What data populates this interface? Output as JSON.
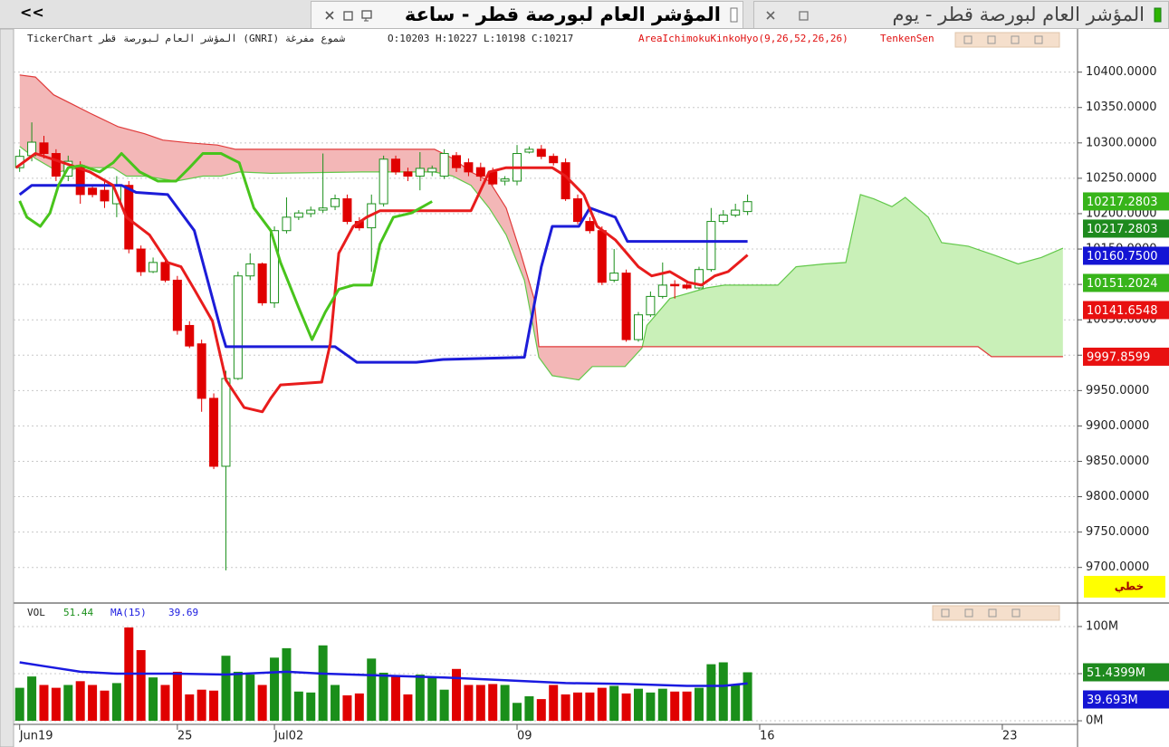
{
  "tabs": {
    "back": "<<",
    "items": [
      {
        "title": "المؤشر العام لبورصة قطر - ساعة"
      },
      {
        "title": "المؤشر العام لبورصة قطر - يوم"
      }
    ]
  },
  "chart_data": [
    {
      "type": "candlestick",
      "title": "TickerChart المؤشر العام لبورصة قطر (GNRI) شموع مفرغة",
      "ohlc": "O:10203 H:10227 L:10198 C:10217",
      "indicators": [
        "AreaIchimokuKinkoHyo(9,26,52,26,26)",
        "TenkenSen"
      ],
      "chart_style": "خطي",
      "up_color": "#1a8f1a",
      "down_color": "#e00000",
      "grid": true,
      "xlim": [
        -0.5,
        87.2
      ],
      "ylim": [
        9651,
        10461
      ],
      "xticks": [
        {
          "value": 0,
          "label": "Jun19"
        },
        {
          "value": 13,
          "label": "25"
        },
        {
          "value": 21,
          "label": "Jul02"
        },
        {
          "value": 41,
          "label": "09"
        },
        {
          "value": 61,
          "label": "16"
        },
        {
          "value": 81,
          "label": "23"
        }
      ],
      "yticks": [
        {
          "value": 9700,
          "label": "9700.0000"
        },
        {
          "value": 9750,
          "label": "9750.0000"
        },
        {
          "value": 9800,
          "label": "9800.0000"
        },
        {
          "value": 9850,
          "label": "9850.0000"
        },
        {
          "value": 9900,
          "label": "9900.0000"
        },
        {
          "value": 9950,
          "label": "9950.0000"
        },
        {
          "value": 10000,
          "label": "10000.0000"
        },
        {
          "value": 10050,
          "label": "10050.0000"
        },
        {
          "value": 10100,
          "label": "10100.0000"
        },
        {
          "value": 10150,
          "label": "10150.0000"
        },
        {
          "value": 10200,
          "label": "10200.0000"
        },
        {
          "value": 10250,
          "label": "10250.0000"
        },
        {
          "value": 10300,
          "label": "10300.0000"
        },
        {
          "value": 10350,
          "label": "10350.0000"
        },
        {
          "value": 10400,
          "label": "10400.0000"
        }
      ],
      "x": [
        0,
        1,
        2,
        3,
        4,
        5,
        6,
        7,
        8,
        9,
        10,
        11,
        12,
        13,
        14,
        15,
        16,
        17,
        18,
        19,
        20,
        21,
        22,
        23,
        24,
        25,
        26,
        27,
        28,
        29,
        30,
        31,
        32,
        33,
        34,
        35,
        36,
        37,
        38,
        39,
        40,
        41,
        42,
        43,
        44,
        45,
        46,
        47,
        48,
        49,
        50,
        51,
        52,
        53,
        54,
        55,
        56,
        57,
        58,
        59,
        60
      ],
      "open": [
        10265,
        10282,
        10300,
        10285,
        10253,
        10268,
        10236,
        10233,
        10214,
        10240,
        10150,
        10118,
        10131,
        10106,
        10042,
        10016,
        9939,
        9843,
        9967,
        10112,
        10129,
        10074,
        10176,
        10195,
        10200,
        10205,
        10210,
        10221,
        10189,
        10180,
        10214,
        10277,
        10259,
        10253,
        10259,
        10253,
        10282,
        10272,
        10265,
        10259,
        10246,
        10246,
        10287,
        10291,
        10281,
        10272,
        10221,
        10189,
        10176,
        10106,
        10116,
        10022,
        10057,
        10083,
        10100,
        10099,
        10095,
        10121,
        10189,
        10198,
        10203
      ],
      "high": [
        10291,
        10329,
        10310,
        10291,
        10282,
        10274,
        10240,
        10246,
        10253,
        10246,
        10155,
        10138,
        10138,
        10112,
        10048,
        10022,
        9946,
        9978,
        10118,
        10144,
        10131,
        10182,
        10223,
        10205,
        10210,
        10285,
        10227,
        10227,
        10195,
        10227,
        10282,
        10282,
        10265,
        10287,
        10268,
        10291,
        10287,
        10278,
        10272,
        10265,
        10253,
        10297,
        10295,
        10297,
        10285,
        10278,
        10227,
        10195,
        10182,
        10150,
        10121,
        10061,
        10090,
        10131,
        10106,
        10103,
        10125,
        10208,
        10205,
        10214,
        10227
      ],
      "low": [
        10259,
        10274,
        10278,
        10246,
        10246,
        10214,
        10223,
        10208,
        10195,
        10144,
        10112,
        10116,
        10103,
        10029,
        10010,
        9920,
        9839,
        9696,
        9965,
        10106,
        10070,
        10067,
        10172,
        10191,
        10195,
        10201,
        10205,
        10185,
        10176,
        10118,
        10210,
        10255,
        10246,
        10233,
        10253,
        10249,
        10259,
        10253,
        10246,
        10240,
        10240,
        10240,
        10285,
        10277,
        10268,
        10218,
        10185,
        10172,
        10099,
        10103,
        10019,
        10019,
        10054,
        10080,
        10080,
        10093,
        10093,
        10118,
        10185,
        10195,
        10198
      ],
      "close": [
        10281,
        10301,
        10285,
        10253,
        10274,
        10227,
        10227,
        10218,
        10240,
        10150,
        10118,
        10131,
        10106,
        10035,
        10013,
        9939,
        9843,
        9967,
        10112,
        10129,
        10074,
        10176,
        10195,
        10201,
        10205,
        10208,
        10221,
        10189,
        10180,
        10214,
        10277,
        10259,
        10253,
        10264,
        10264,
        10285,
        10265,
        10259,
        10253,
        10242,
        10249,
        10285,
        10291,
        10281,
        10272,
        10221,
        10189,
        10176,
        10103,
        10116,
        10022,
        10057,
        10083,
        10099,
        10098,
        10095,
        10121,
        10189,
        10198,
        10205,
        10217
      ],
      "cloud": {
        "up_fill": "#c9f0b8",
        "down_fill": "#f3b7b7",
        "span_a": {
          "color": "#62c84a",
          "x": [
            0,
            1.3,
            3.2,
            5.1,
            7.7,
            8.8,
            10.3,
            12.9,
            15.1,
            16.6,
            18.1,
            20.7,
            28.2,
            34.2,
            35.7,
            37.2,
            38.7,
            40.1,
            41.6,
            42.8,
            43.9,
            46.1,
            47.2,
            49.9,
            51.3,
            51.7,
            53.6,
            56.6,
            58.1,
            62.5,
            64,
            66.3,
            68.1,
            69.3,
            70.4,
            71.9,
            73,
            74.9,
            76,
            78.2,
            80.4,
            82.3,
            84.2,
            86
          ],
          "values": [
            10295,
            10278,
            10259,
            10265,
            10265,
            10253,
            10253,
            10246,
            10253,
            10253,
            10259,
            10257,
            10259,
            10259,
            10253,
            10240,
            10208,
            10170,
            10106,
            9997,
            9971,
            9965,
            9984,
            9984,
            10010,
            10042,
            10080,
            10095,
            10099,
            10099,
            10125,
            10129,
            10131,
            10227,
            10221,
            10210,
            10223,
            10195,
            10159,
            10154,
            10141,
            10129,
            10138,
            10151.2024
          ]
        },
        "span_b": {
          "color": "#e03a3a",
          "x": [
            0,
            1.3,
            2.8,
            4.3,
            5.8,
            8.1,
            10.3,
            11.8,
            14,
            16.3,
            17.8,
            34.2,
            34.9,
            35.7,
            37.2,
            38.7,
            40.1,
            41.3,
            42.4,
            42.8,
            50.6,
            79,
            80.1,
            86
          ],
          "values": [
            10396,
            10393,
            10368,
            10355,
            10342,
            10323,
            10313,
            10304,
            10300,
            10297,
            10291,
            10291,
            10285,
            10278,
            10259,
            10246,
            10208,
            10144,
            10080,
            10012,
            10012,
            10012,
            9997.8599,
            9997.8599
          ]
        }
      },
      "lines": [
        {
          "color": "#1c1cd8",
          "x": [
            0,
            1,
            8.4,
            9.6,
            12.2,
            14.4,
            16.6,
            17,
            26,
            27.8,
            32.7,
            34.9,
            41.6,
            43,
            43.9,
            46.1,
            47,
            49.1,
            50.1,
            60
          ],
          "values": [
            10227,
            10240,
            10240,
            10230,
            10227,
            10176,
            10035,
            10012,
            10012,
            9990,
            9990,
            9994,
            9997,
            10125,
            10182,
            10182,
            10208,
            10195,
            10160.75,
            10160.75
          ]
        },
        {
          "color": "#e81c1c",
          "x": [
            -0.3,
            1.3,
            3.6,
            5.8,
            7.7,
            8.8,
            10.7,
            12.2,
            13.3,
            14.4,
            15.9,
            17,
            18.5,
            20,
            20.7,
            21.5,
            24.9,
            25.6,
            26.3,
            27.5,
            28.6,
            29.7,
            37.2,
            38.7,
            40.1,
            43.9,
            45,
            46.5,
            47.6,
            49.1,
            51,
            52.1,
            53.6,
            55.1,
            56.2,
            57.3,
            58.4,
            60
          ],
          "values": [
            10265,
            10285,
            10272,
            10259,
            10240,
            10195,
            10170,
            10131,
            10125,
            10093,
            10048,
            9965,
            9926,
            9920,
            9939,
            9958,
            9962,
            10016,
            10144,
            10182,
            10195,
            10204,
            10204,
            10259,
            10265,
            10265,
            10253,
            10227,
            10182,
            10163,
            10125,
            10112,
            10118,
            10103,
            10099,
            10112,
            10118,
            10141.6548
          ]
        },
        {
          "color": "#48c41c",
          "x": [
            0,
            0.6,
            1.7,
            2.5,
            3.2,
            4,
            5.1,
            6.6,
            7.7,
            8.4,
            9.9,
            11.4,
            12.9,
            14,
            15.1,
            16.6,
            18.1,
            19.3,
            20.7,
            21.5,
            23,
            24.1,
            25.2,
            26.3,
            27.5,
            29,
            29.7,
            30.8,
            32.3,
            34
          ],
          "values": [
            10218,
            10195,
            10182,
            10201,
            10240,
            10265,
            10268,
            10259,
            10272,
            10285,
            10259,
            10246,
            10246,
            10265,
            10285,
            10285,
            10272,
            10208,
            10176,
            10131,
            10067,
            10022,
            10061,
            10093,
            10099,
            10099,
            10157,
            10195,
            10201,
            10217.2803
          ]
        }
      ],
      "last_value_labels": [
        {
          "value": 10217.2803,
          "label": "10217.2803",
          "color": "#37b41a"
        },
        {
          "value": 10217.2803,
          "label": "10217.2803",
          "color": "#1e8a1e"
        },
        {
          "value": 10160.75,
          "label": "10160.7500",
          "color": "#1414d4"
        },
        {
          "value": 10151.2024,
          "label": "10151.2024",
          "color": "#37b41a"
        },
        {
          "value": 10141.6548,
          "label": "10141.6548",
          "color": "#e81010"
        },
        {
          "value": 9997.8599,
          "label": "9997.8599",
          "color": "#e81010"
        }
      ]
    },
    {
      "type": "bar",
      "title": "VOL",
      "value_text": "51.44",
      "ma_name": "MA(15)",
      "ma_text": "39.69",
      "grid": true,
      "xlim": [
        -0.5,
        87.2
      ],
      "ylim": [
        -3.8,
        123
      ],
      "yticks": [
        {
          "value": 0,
          "label": "0M"
        },
        {
          "value": 50,
          "label": "50M"
        },
        {
          "value": 100,
          "label": "100M"
        }
      ],
      "values": [
        35,
        47,
        38,
        35,
        38,
        42,
        38,
        32,
        40,
        99,
        75,
        46,
        38,
        52,
        28,
        33,
        32,
        69,
        52,
        49,
        38,
        67,
        77,
        31,
        30,
        80,
        38,
        27,
        29,
        66,
        51,
        47,
        28,
        49,
        46,
        33,
        55,
        38,
        38,
        39,
        38,
        19,
        26,
        23,
        38,
        28,
        30,
        30,
        35,
        37,
        29,
        34,
        30,
        34,
        31,
        31,
        35,
        60,
        62,
        38,
        51.4399
      ],
      "ma": {
        "color": "#1a1ae0",
        "x": [
          0,
          2,
          5,
          8,
          10,
          13,
          17,
          22,
          25,
          30,
          35,
          40,
          45,
          50,
          55,
          58,
          60
        ],
        "values": [
          62,
          58,
          52,
          50,
          50,
          50,
          49,
          52,
          50,
          48,
          46,
          43,
          40,
          39,
          37,
          37,
          39.693
        ]
      },
      "last_value_labels": [
        {
          "value": 51.4399,
          "label": "51.4399M",
          "color": "#1e8a1e"
        },
        {
          "value": 39.693,
          "label": "39.693M",
          "color": "#1414d4"
        }
      ]
    }
  ]
}
